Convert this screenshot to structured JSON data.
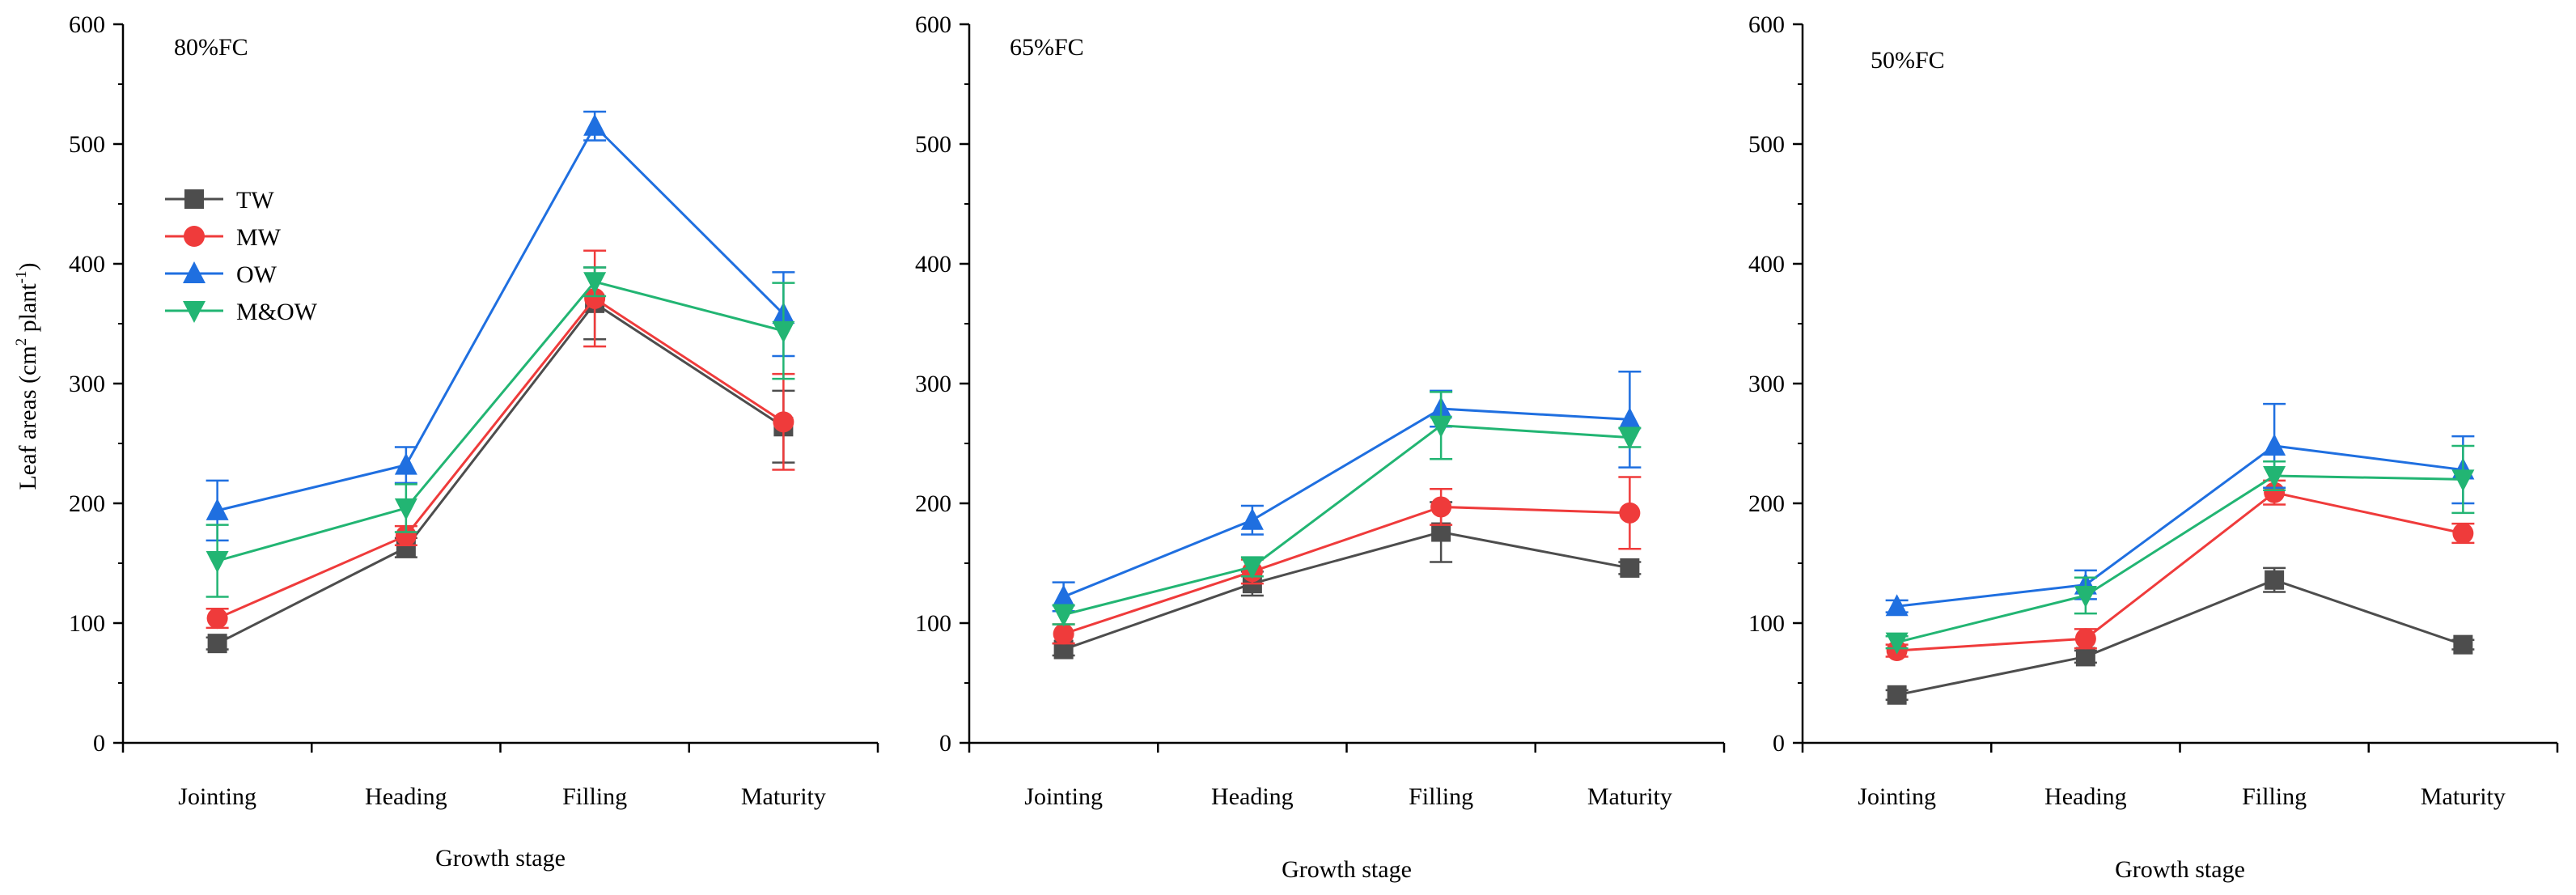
{
  "figure": {
    "ylabel_main": "Leaf areas (cm",
    "ylabel_sup1": "2",
    "ylabel_mid": " plant",
    "ylabel_sup2": "-1",
    "ylabel_end": ")"
  },
  "chart_data": [
    {
      "type": "line",
      "title": "80%FC",
      "xlabel": "Growth stage",
      "ylabel": "Leaf areas (cm2 plant-1)",
      "ylim": [
        0,
        600
      ],
      "yticks": [
        "0",
        "100",
        "200",
        "300",
        "400",
        "500",
        "600"
      ],
      "categories": [
        "Jointing",
        "Heading",
        "Filling",
        "Maturity"
      ],
      "legend": "upper-left",
      "series": [
        {
          "name": "TW",
          "color": "#4d4d4d",
          "marker": "square",
          "values": [
            83,
            163,
            367,
            264
          ],
          "errors": [
            5,
            8,
            30,
            30
          ]
        },
        {
          "name": "MW",
          "color": "#ef3b3b",
          "marker": "circle",
          "values": [
            104,
            173,
            371,
            268
          ],
          "errors": [
            8,
            8,
            40,
            40
          ]
        },
        {
          "name": "OW",
          "color": "#1f6fe0",
          "marker": "triangle-up",
          "values": [
            194,
            232,
            515,
            358
          ],
          "errors": [
            25,
            15,
            12,
            35
          ]
        },
        {
          "name": "M&OW",
          "color": "#22b573",
          "marker": "triangle-down",
          "values": [
            152,
            196,
            385,
            344
          ],
          "errors": [
            30,
            20,
            12,
            40
          ]
        }
      ]
    },
    {
      "type": "line",
      "title": "65%FC",
      "xlabel": "Growth stage",
      "ylabel": "",
      "ylim": [
        0,
        600
      ],
      "yticks": [
        "0",
        "100",
        "200",
        "300",
        "400",
        "500",
        "600"
      ],
      "categories": [
        "Jointing",
        "Heading",
        "Filling",
        "Maturity"
      ],
      "series": [
        {
          "name": "TW",
          "color": "#4d4d4d",
          "marker": "square",
          "values": [
            78,
            133,
            176,
            146
          ],
          "errors": [
            5,
            10,
            25,
            5
          ]
        },
        {
          "name": "MW",
          "color": "#ef3b3b",
          "marker": "circle",
          "values": [
            91,
            143,
            197,
            192
          ],
          "errors": [
            8,
            10,
            15,
            30
          ]
        },
        {
          "name": "OW",
          "color": "#1f6fe0",
          "marker": "triangle-up",
          "values": [
            122,
            186,
            279,
            270
          ],
          "errors": [
            12,
            12,
            15,
            40
          ]
        },
        {
          "name": "M&OW",
          "color": "#22b573",
          "marker": "triangle-down",
          "values": [
            107,
            147,
            265,
            255
          ],
          "errors": [
            8,
            8,
            28,
            8
          ]
        }
      ]
    },
    {
      "type": "line",
      "title": "50%FC",
      "xlabel": "Growth stage",
      "ylabel": "",
      "ylim": [
        0,
        600
      ],
      "yticks": [
        "0",
        "100",
        "200",
        "300",
        "400",
        "500",
        "600"
      ],
      "categories": [
        "Jointing",
        "Heading",
        "Filling",
        "Maturity"
      ],
      "series": [
        {
          "name": "TW",
          "color": "#4d4d4d",
          "marker": "square",
          "values": [
            40,
            72,
            136,
            82
          ],
          "errors": [
            4,
            5,
            10,
            4
          ]
        },
        {
          "name": "MW",
          "color": "#ef3b3b",
          "marker": "circle",
          "values": [
            77,
            87,
            209,
            175
          ],
          "errors": [
            5,
            8,
            10,
            8
          ]
        },
        {
          "name": "OW",
          "color": "#1f6fe0",
          "marker": "triangle-up",
          "values": [
            114,
            132,
            248,
            228
          ],
          "errors": [
            5,
            12,
            35,
            28
          ]
        },
        {
          "name": "M&OW",
          "color": "#22b573",
          "marker": "triangle-down",
          "values": [
            84,
            123,
            223,
            220
          ],
          "errors": [
            5,
            15,
            12,
            28
          ]
        }
      ]
    }
  ]
}
